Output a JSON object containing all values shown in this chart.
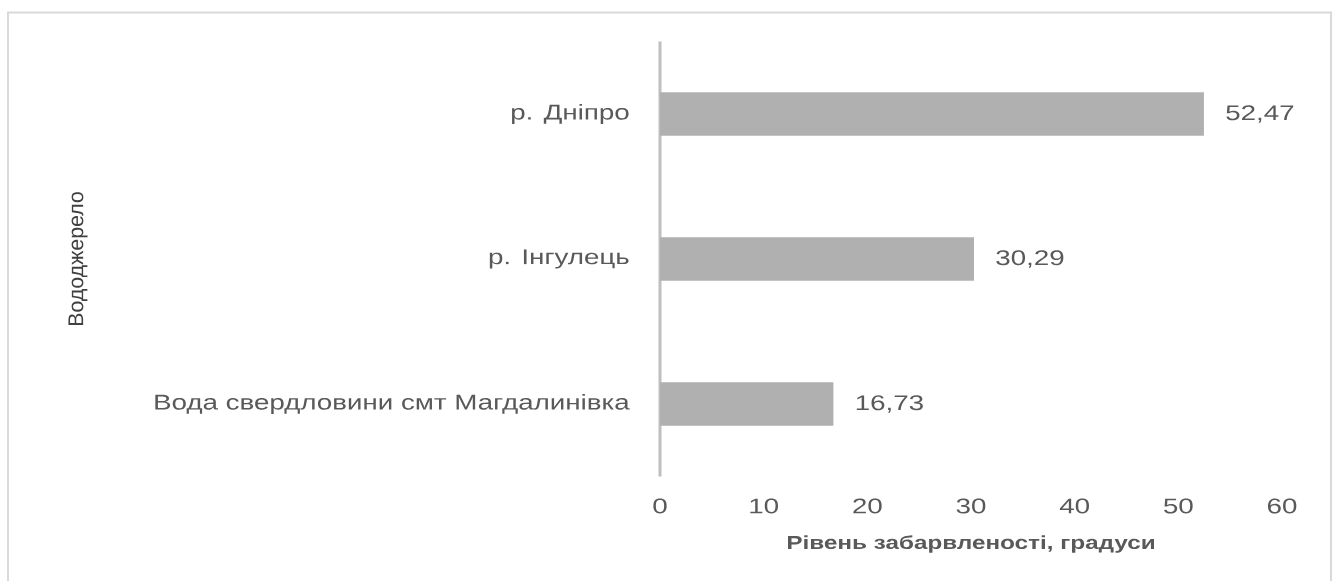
{
  "chart_data": {
    "type": "bar",
    "orientation": "horizontal",
    "categories": [
      "р. Дніпро",
      "р. Інгулець",
      "Вода свердловини смт Магдалинівка"
    ],
    "values": [
      52.47,
      30.29,
      16.73
    ],
    "value_labels": [
      "52,47",
      "30,29",
      "16,73"
    ],
    "color": "#b0b0b0",
    "xlim": [
      0,
      60
    ],
    "xticks": [
      0,
      10,
      20,
      30,
      40,
      50,
      60
    ],
    "xlabel": "Рівень забарвленості, градуси",
    "ylabel": "Вододжерело"
  }
}
